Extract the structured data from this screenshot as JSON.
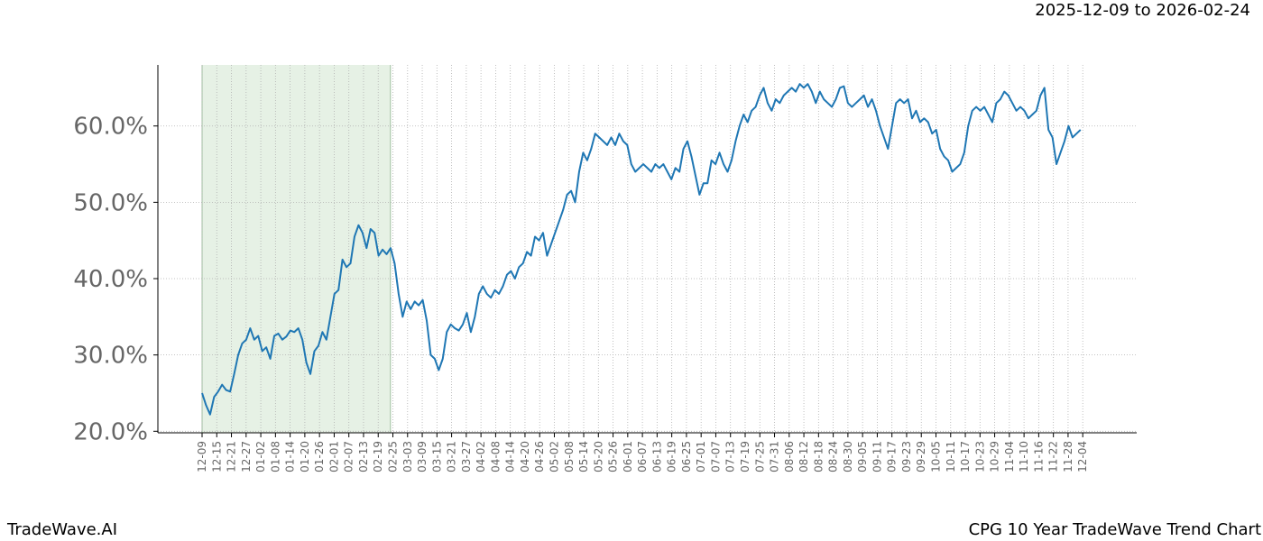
{
  "header": {
    "date_range": "2025-12-09 to 2026-02-24"
  },
  "footer": {
    "brand": "TradeWave.AI",
    "caption": "CPG 10 Year TradeWave Trend Chart"
  },
  "colors": {
    "line": "#1f77b4",
    "highlight_fill": "#d5e8d4",
    "grid": "#b0b0b0",
    "tick_text": "#666666"
  },
  "chart_data": {
    "type": "line",
    "title": "",
    "xlabel": "",
    "ylabel": "",
    "grid": true,
    "ylim": [
      19.8,
      68.0
    ],
    "y_ticks": [
      20,
      30,
      40,
      50,
      60
    ],
    "y_tick_labels": [
      "20.0%",
      "30.0%",
      "40.0%",
      "50.0%",
      "60.0%"
    ],
    "x_tick_labels": [
      "12-09",
      "12-15",
      "12-21",
      "12-27",
      "01-02",
      "01-08",
      "01-14",
      "01-20",
      "01-26",
      "02-01",
      "02-07",
      "02-13",
      "02-19",
      "02-25",
      "03-03",
      "03-09",
      "03-15",
      "03-21",
      "03-27",
      "04-02",
      "04-08",
      "04-14",
      "04-20",
      "04-26",
      "05-02",
      "05-08",
      "05-14",
      "05-20",
      "05-26",
      "06-01",
      "06-07",
      "06-13",
      "06-19",
      "06-25",
      "07-01",
      "07-07",
      "07-13",
      "07-19",
      "07-25",
      "07-31",
      "08-06",
      "08-12",
      "08-18",
      "08-24",
      "08-30",
      "09-05",
      "09-11",
      "09-17",
      "09-23",
      "09-29",
      "10-05",
      "10-11",
      "10-17",
      "10-23",
      "10-29",
      "11-04",
      "11-10",
      "11-16",
      "11-22",
      "11-28",
      "12-04"
    ],
    "highlight_range": [
      "12-09",
      "02-24"
    ],
    "series": [
      {
        "color": "#1f77b4",
        "points": [
          [
            0,
            25.0
          ],
          [
            1,
            23.4
          ],
          [
            2,
            22.2
          ],
          [
            3,
            24.5
          ],
          [
            4,
            25.2
          ],
          [
            5,
            26.1
          ],
          [
            6,
            25.4
          ],
          [
            7,
            25.2
          ],
          [
            8,
            27.5
          ],
          [
            9,
            30.0
          ],
          [
            10,
            31.5
          ],
          [
            11,
            32.0
          ],
          [
            12,
            33.5
          ],
          [
            13,
            32.0
          ],
          [
            14,
            32.5
          ],
          [
            15,
            30.5
          ],
          [
            16,
            31.0
          ],
          [
            17,
            29.5
          ],
          [
            18,
            32.5
          ],
          [
            19,
            32.8
          ],
          [
            20,
            32.0
          ],
          [
            21,
            32.4
          ],
          [
            22,
            33.2
          ],
          [
            23,
            33.0
          ],
          [
            24,
            33.5
          ],
          [
            25,
            32.0
          ],
          [
            26,
            29.0
          ],
          [
            27,
            27.5
          ],
          [
            28,
            30.5
          ],
          [
            29,
            31.2
          ],
          [
            30,
            33.0
          ],
          [
            31,
            32.0
          ],
          [
            32,
            35.0
          ],
          [
            33,
            38.0
          ],
          [
            34,
            38.5
          ],
          [
            35,
            42.5
          ],
          [
            36,
            41.5
          ],
          [
            37,
            42.0
          ],
          [
            38,
            45.5
          ],
          [
            39,
            47.0
          ],
          [
            40,
            46.0
          ],
          [
            41,
            44.0
          ],
          [
            42,
            46.5
          ],
          [
            43,
            46.0
          ],
          [
            44,
            43.0
          ],
          [
            45,
            43.8
          ],
          [
            46,
            43.2
          ],
          [
            47,
            44.0
          ],
          [
            48,
            42.0
          ],
          [
            49,
            38.0
          ],
          [
            50,
            35.0
          ],
          [
            51,
            37.0
          ],
          [
            52,
            36.0
          ],
          [
            53,
            37.0
          ],
          [
            54,
            36.5
          ],
          [
            55,
            37.2
          ],
          [
            56,
            34.5
          ],
          [
            57,
            30.0
          ],
          [
            58,
            29.5
          ],
          [
            59,
            28.0
          ],
          [
            60,
            29.5
          ],
          [
            61,
            33.0
          ],
          [
            62,
            34.0
          ],
          [
            63,
            33.5
          ],
          [
            64,
            33.2
          ],
          [
            65,
            34.0
          ],
          [
            66,
            35.5
          ],
          [
            67,
            33.0
          ],
          [
            68,
            35.0
          ],
          [
            69,
            38.0
          ],
          [
            70,
            39.0
          ],
          [
            71,
            38.0
          ],
          [
            72,
            37.5
          ],
          [
            73,
            38.5
          ],
          [
            74,
            38.0
          ],
          [
            75,
            39.0
          ],
          [
            76,
            40.5
          ],
          [
            77,
            41.0
          ],
          [
            78,
            40.0
          ],
          [
            79,
            41.5
          ],
          [
            80,
            42.0
          ],
          [
            81,
            43.5
          ],
          [
            82,
            43.0
          ],
          [
            83,
            45.5
          ],
          [
            84,
            45.0
          ],
          [
            85,
            46.0
          ],
          [
            86,
            43.0
          ],
          [
            87,
            44.5
          ],
          [
            88,
            46.0
          ],
          [
            89,
            47.5
          ],
          [
            90,
            49.0
          ],
          [
            91,
            51.0
          ],
          [
            92,
            51.5
          ],
          [
            93,
            50.0
          ],
          [
            94,
            54.0
          ],
          [
            95,
            56.5
          ],
          [
            96,
            55.5
          ],
          [
            97,
            57.0
          ],
          [
            98,
            59.0
          ],
          [
            99,
            58.5
          ],
          [
            100,
            58.0
          ],
          [
            101,
            57.5
          ],
          [
            102,
            58.5
          ],
          [
            103,
            57.5
          ],
          [
            104,
            59.0
          ],
          [
            105,
            58.0
          ],
          [
            106,
            57.5
          ],
          [
            107,
            55.0
          ],
          [
            108,
            54.0
          ],
          [
            109,
            54.5
          ],
          [
            110,
            55.0
          ],
          [
            111,
            54.5
          ],
          [
            112,
            54.0
          ],
          [
            113,
            55.0
          ],
          [
            114,
            54.5
          ],
          [
            115,
            55.0
          ],
          [
            116,
            54.0
          ],
          [
            117,
            53.0
          ],
          [
            118,
            54.5
          ],
          [
            119,
            54.0
          ],
          [
            120,
            57.0
          ],
          [
            121,
            58.0
          ],
          [
            122,
            56.0
          ],
          [
            123,
            53.5
          ],
          [
            124,
            51.0
          ],
          [
            125,
            52.5
          ],
          [
            126,
            52.5
          ],
          [
            127,
            55.5
          ],
          [
            128,
            55.0
          ],
          [
            129,
            56.5
          ],
          [
            130,
            55.0
          ],
          [
            131,
            54.0
          ],
          [
            132,
            55.5
          ],
          [
            133,
            58.0
          ],
          [
            134,
            60.0
          ],
          [
            135,
            61.5
          ],
          [
            136,
            60.5
          ],
          [
            137,
            62.0
          ],
          [
            138,
            62.5
          ],
          [
            139,
            64.0
          ],
          [
            140,
            65.0
          ],
          [
            141,
            63.0
          ],
          [
            142,
            62.0
          ],
          [
            143,
            63.5
          ],
          [
            144,
            63.0
          ],
          [
            145,
            64.0
          ],
          [
            146,
            64.5
          ],
          [
            147,
            65.0
          ],
          [
            148,
            64.5
          ],
          [
            149,
            65.5
          ],
          [
            150,
            65.0
          ],
          [
            151,
            65.5
          ],
          [
            152,
            64.5
          ],
          [
            153,
            63.0
          ],
          [
            154,
            64.5
          ],
          [
            155,
            63.5
          ],
          [
            156,
            63.0
          ],
          [
            157,
            62.5
          ],
          [
            158,
            63.5
          ],
          [
            159,
            65.0
          ],
          [
            160,
            65.2
          ],
          [
            161,
            63.0
          ],
          [
            162,
            62.5
          ],
          [
            163,
            63.0
          ],
          [
            164,
            63.5
          ],
          [
            165,
            64.0
          ],
          [
            166,
            62.5
          ],
          [
            167,
            63.5
          ],
          [
            168,
            62.0
          ],
          [
            169,
            60.0
          ],
          [
            170,
            58.5
          ],
          [
            171,
            57.0
          ],
          [
            172,
            60.0
          ],
          [
            173,
            63.0
          ],
          [
            174,
            63.5
          ],
          [
            175,
            63.0
          ],
          [
            176,
            63.5
          ],
          [
            177,
            61.0
          ],
          [
            178,
            62.0
          ],
          [
            179,
            60.5
          ],
          [
            180,
            61.0
          ],
          [
            181,
            60.5
          ],
          [
            182,
            59.0
          ],
          [
            183,
            59.5
          ],
          [
            184,
            57.0
          ],
          [
            185,
            56.0
          ],
          [
            186,
            55.5
          ],
          [
            187,
            54.0
          ],
          [
            188,
            54.5
          ],
          [
            189,
            55.0
          ],
          [
            190,
            56.5
          ],
          [
            191,
            60.0
          ],
          [
            192,
            62.0
          ],
          [
            193,
            62.5
          ],
          [
            194,
            62.0
          ],
          [
            195,
            62.5
          ],
          [
            196,
            61.5
          ],
          [
            197,
            60.5
          ],
          [
            198,
            63.0
          ],
          [
            199,
            63.5
          ],
          [
            200,
            64.5
          ],
          [
            201,
            64.0
          ],
          [
            202,
            63.0
          ],
          [
            203,
            62.0
          ],
          [
            204,
            62.5
          ],
          [
            205,
            62.0
          ],
          [
            206,
            61.0
          ],
          [
            207,
            61.5
          ],
          [
            208,
            62.0
          ],
          [
            209,
            64.0
          ],
          [
            210,
            65.0
          ],
          [
            211,
            59.5
          ],
          [
            212,
            58.5
          ],
          [
            213,
            55.0
          ],
          [
            214,
            56.5
          ],
          [
            215,
            58.0
          ],
          [
            216,
            60.0
          ],
          [
            217,
            58.5
          ],
          [
            218,
            59.0
          ],
          [
            219,
            59.5
          ]
        ]
      }
    ]
  }
}
